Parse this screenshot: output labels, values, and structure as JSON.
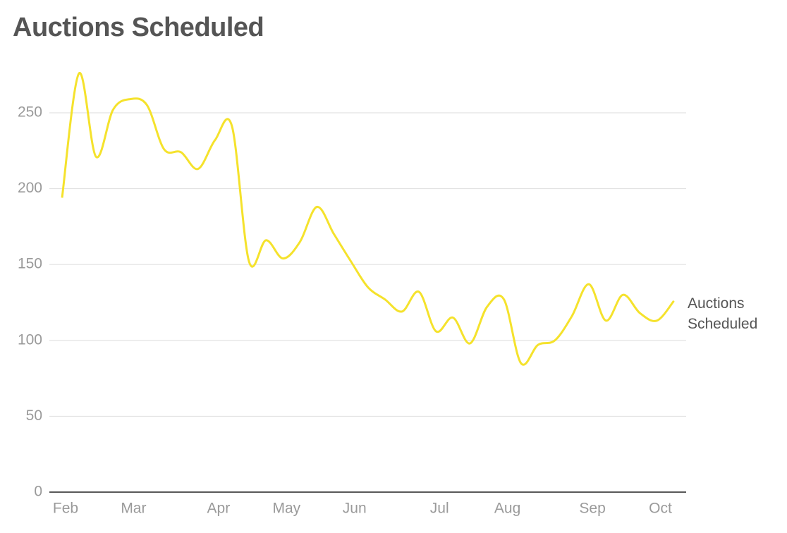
{
  "chart_data": {
    "type": "line",
    "title": "Auctions Scheduled",
    "categories": [
      "Feb",
      null,
      null,
      null,
      "Mar",
      null,
      null,
      null,
      null,
      "Apr",
      null,
      null,
      null,
      "May",
      null,
      null,
      null,
      "Jun",
      null,
      null,
      null,
      null,
      "Jul",
      null,
      null,
      null,
      "Aug",
      null,
      null,
      null,
      null,
      "Sep",
      null,
      null,
      null,
      "Oct",
      null
    ],
    "series": [
      {
        "name": "Auctions Scheduled",
        "color": "#f5e22c",
        "values": [
          194,
          276,
          221,
          252,
          259,
          255,
          226,
          224,
          213,
          232,
          241,
          152,
          166,
          154,
          165,
          188,
          170,
          152,
          135,
          127,
          119,
          132,
          106,
          115,
          98,
          122,
          127,
          85,
          97,
          100,
          116,
          137,
          113,
          130,
          118,
          113,
          126
        ]
      }
    ],
    "ylim": [
      0,
      280
    ],
    "yticks": [
      0,
      50,
      100,
      150,
      200,
      250
    ],
    "grid": true
  }
}
